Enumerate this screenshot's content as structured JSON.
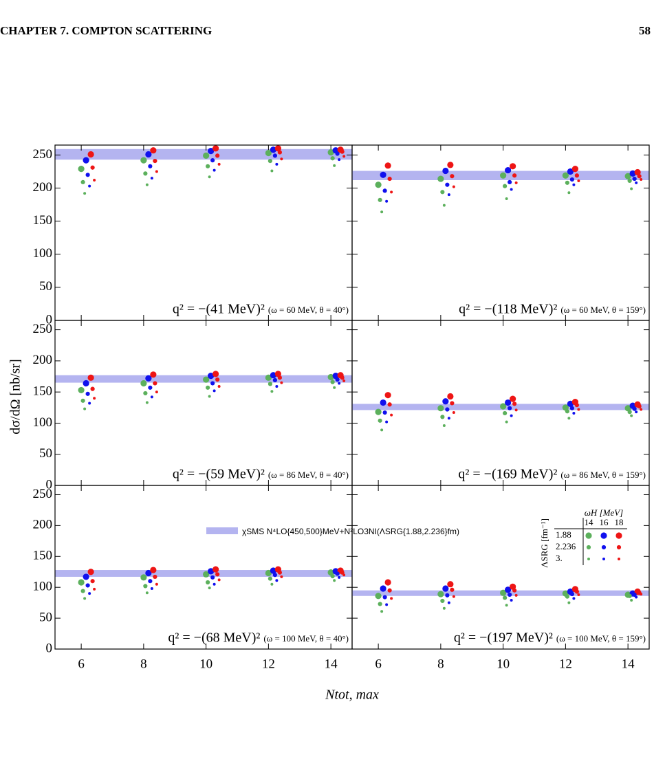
{
  "header": {
    "chapter": "CHAPTER 7.  COMPTON SCATTERING",
    "page": "58"
  },
  "figure": {
    "ylabel": "dσ/dΩ [nb/sr]",
    "xlabel": "Ntot, max",
    "band_label": "χSMS N⁴LO{450,500}MeV+N²LO3NI(ΛSRG{1.88,2.236}fm)",
    "band_color": "#b4b4f0",
    "legend": {
      "title": "ωH [MeV]",
      "row_title": "ΛSRG [fm⁻¹]",
      "omegas": [
        14,
        16,
        18
      ],
      "lambdas": [
        1.88,
        2.236,
        {
          "value": 3,
          "label": "3."
        }
      ],
      "colors": [
        "#5cb05c",
        "#1010ee",
        "#ee1515"
      ]
    }
  },
  "chart_data": [
    {
      "type": "scatter",
      "annotation": "q² = −(41 MeV)²",
      "detail": "(ω = 60 MeV, θ = 40°)",
      "band": [
        243,
        259
      ],
      "x": [
        6,
        8,
        10,
        12,
        14
      ],
      "xlim": [
        5.16,
        14.68
      ],
      "xticks": [
        6,
        8,
        10,
        12,
        14
      ],
      "ylim": [
        0,
        265
      ],
      "yticks": [
        0,
        50,
        100,
        150,
        200,
        250
      ],
      "series": [
        {
          "omega": 14,
          "lambda": 1.88,
          "values": [
            229,
            242,
            249,
            253,
            254
          ]
        },
        {
          "omega": 16,
          "lambda": 1.88,
          "values": [
            242,
            251,
            256,
            258,
            257
          ]
        },
        {
          "omega": 18,
          "lambda": 1.88,
          "values": [
            251,
            257,
            260,
            260,
            258
          ]
        },
        {
          "omega": 14,
          "lambda": 2.236,
          "values": [
            209,
            222,
            233,
            241,
            245
          ]
        },
        {
          "omega": 16,
          "lambda": 2.236,
          "values": [
            220,
            233,
            242,
            249,
            252
          ]
        },
        {
          "omega": 18,
          "lambda": 2.236,
          "values": [
            231,
            241,
            249,
            254,
            255
          ]
        },
        {
          "omega": 14,
          "lambda": 3,
          "values": [
            192,
            205,
            217,
            226,
            234
          ]
        },
        {
          "omega": 16,
          "lambda": 3,
          "values": [
            203,
            215,
            227,
            236,
            243
          ]
        },
        {
          "omega": 18,
          "lambda": 3,
          "values": [
            212,
            225,
            236,
            244,
            248
          ]
        }
      ]
    },
    {
      "type": "scatter",
      "annotation": "q² = −(118 MeV)²",
      "detail": "(ω = 60 MeV, θ = 159°)",
      "band": [
        212,
        226
      ],
      "x": [
        6,
        8,
        10,
        12,
        14
      ],
      "xlim": [
        5.16,
        14.68
      ],
      "xticks": [
        6,
        8,
        10,
        12,
        14
      ],
      "ylim": [
        0,
        265
      ],
      "yticks": [
        0,
        50,
        100,
        150,
        200,
        250
      ],
      "series": [
        {
          "omega": 14,
          "lambda": 1.88,
          "values": [
            205,
            214,
            219,
            219,
            218
          ]
        },
        {
          "omega": 16,
          "lambda": 1.88,
          "values": [
            220,
            226,
            227,
            225,
            222
          ]
        },
        {
          "omega": 18,
          "lambda": 1.88,
          "values": [
            234,
            235,
            233,
            229,
            224
          ]
        },
        {
          "omega": 14,
          "lambda": 2.236,
          "values": [
            182,
            194,
            203,
            208,
            211
          ]
        },
        {
          "omega": 16,
          "lambda": 2.236,
          "values": [
            196,
            205,
            209,
            213,
            214
          ]
        },
        {
          "omega": 18,
          "lambda": 2.236,
          "values": [
            214,
            218,
            219,
            219,
            218
          ]
        },
        {
          "omega": 14,
          "lambda": 3,
          "values": [
            164,
            174,
            184,
            193,
            199
          ]
        },
        {
          "omega": 16,
          "lambda": 3,
          "values": [
            180,
            190,
            198,
            205,
            208
          ]
        },
        {
          "omega": 18,
          "lambda": 3,
          "values": [
            194,
            202,
            208,
            211,
            213
          ]
        }
      ]
    },
    {
      "type": "scatter",
      "annotation": "q² = −(59 MeV)²",
      "detail": "(ω = 86 MeV, θ = 40°)",
      "band": [
        165,
        177
      ],
      "x": [
        6,
        8,
        10,
        12,
        14
      ],
      "xlim": [
        5.16,
        14.68
      ],
      "xticks": [
        6,
        8,
        10,
        12,
        14
      ],
      "ylim": [
        0,
        265
      ],
      "yticks": [
        0,
        50,
        100,
        150,
        200,
        250
      ],
      "series": [
        {
          "omega": 14,
          "lambda": 1.88,
          "values": [
            153,
            164,
            170,
            173,
            174
          ]
        },
        {
          "omega": 16,
          "lambda": 1.88,
          "values": [
            164,
            172,
            176,
            177,
            176
          ]
        },
        {
          "omega": 18,
          "lambda": 1.88,
          "values": [
            173,
            178,
            179,
            179,
            177
          ]
        },
        {
          "omega": 14,
          "lambda": 2.236,
          "values": [
            136,
            148,
            157,
            163,
            166
          ]
        },
        {
          "omega": 16,
          "lambda": 2.236,
          "values": [
            147,
            157,
            164,
            169,
            170
          ]
        },
        {
          "omega": 18,
          "lambda": 2.236,
          "values": [
            155,
            164,
            170,
            173,
            173
          ]
        },
        {
          "omega": 14,
          "lambda": 3,
          "values": [
            123,
            133,
            143,
            151,
            157
          ]
        },
        {
          "omega": 16,
          "lambda": 3,
          "values": [
            132,
            142,
            152,
            159,
            164
          ]
        },
        {
          "omega": 18,
          "lambda": 3,
          "values": [
            140,
            150,
            159,
            165,
            168
          ]
        }
      ]
    },
    {
      "type": "scatter",
      "annotation": "q² = −(169 MeV)²",
      "detail": "(ω = 86 MeV, θ = 159°)",
      "band": [
        121,
        131
      ],
      "x": [
        6,
        8,
        10,
        12,
        14
      ],
      "xlim": [
        5.16,
        14.68
      ],
      "xticks": [
        6,
        8,
        10,
        12,
        14
      ],
      "ylim": [
        0,
        265
      ],
      "yticks": [
        0,
        50,
        100,
        150,
        200,
        250
      ],
      "series": [
        {
          "omega": 14,
          "lambda": 1.88,
          "values": [
            118,
            124,
            127,
            125,
            124
          ]
        },
        {
          "omega": 16,
          "lambda": 1.88,
          "values": [
            133,
            135,
            133,
            131,
            128
          ]
        },
        {
          "omega": 18,
          "lambda": 1.88,
          "values": [
            145,
            143,
            139,
            134,
            130
          ]
        },
        {
          "omega": 14,
          "lambda": 2.236,
          "values": [
            104,
            110,
            116,
            119,
            118
          ]
        },
        {
          "omega": 16,
          "lambda": 2.236,
          "values": [
            117,
            122,
            124,
            124,
            123
          ]
        },
        {
          "omega": 18,
          "lambda": 2.236,
          "values": [
            130,
            132,
            131,
            129,
            127
          ]
        },
        {
          "omega": 14,
          "lambda": 3,
          "values": [
            89,
            96,
            102,
            108,
            112
          ]
        },
        {
          "omega": 16,
          "lambda": 3,
          "values": [
            102,
            108,
            112,
            116,
            118
          ]
        },
        {
          "omega": 18,
          "lambda": 3,
          "values": [
            113,
            117,
            121,
            122,
            122
          ]
        }
      ]
    },
    {
      "type": "scatter",
      "annotation": "q² = −(68 MeV)²",
      "detail": "(ω = 100 MeV, θ = 40°)",
      "band": [
        117,
        128
      ],
      "x": [
        6,
        8,
        10,
        12,
        14
      ],
      "xlim": [
        5.16,
        14.68
      ],
      "xticks": [
        6,
        8,
        10,
        12,
        14
      ],
      "ylim": [
        0,
        265
      ],
      "yticks": [
        0,
        50,
        100,
        150,
        200,
        250
      ],
      "series": [
        {
          "omega": 14,
          "lambda": 1.88,
          "values": [
            108,
            116,
            121,
            123,
            124
          ]
        },
        {
          "omega": 16,
          "lambda": 1.88,
          "values": [
            117,
            123,
            126,
            127,
            126
          ]
        },
        {
          "omega": 18,
          "lambda": 1.88,
          "values": [
            125,
            128,
            129,
            129,
            127
          ]
        },
        {
          "omega": 14,
          "lambda": 2.236,
          "values": [
            94,
            102,
            108,
            114,
            118
          ]
        },
        {
          "omega": 16,
          "lambda": 2.236,
          "values": [
            103,
            110,
            116,
            120,
            122
          ]
        },
        {
          "omega": 18,
          "lambda": 2.236,
          "values": [
            110,
            117,
            121,
            124,
            124
          ]
        },
        {
          "omega": 14,
          "lambda": 3,
          "values": [
            82,
            91,
            99,
            105,
            111
          ]
        },
        {
          "omega": 16,
          "lambda": 3,
          "values": [
            90,
            98,
            105,
            111,
            116
          ]
        },
        {
          "omega": 18,
          "lambda": 3,
          "values": [
            97,
            105,
            112,
            117,
            120
          ]
        }
      ]
    },
    {
      "type": "scatter",
      "annotation": "q² = −(197 MeV)²",
      "detail": "(ω = 100 MeV, θ = 159°)",
      "band": [
        86,
        95
      ],
      "x": [
        6,
        8,
        10,
        12,
        14
      ],
      "xlim": [
        5.16,
        14.68
      ],
      "xticks": [
        6,
        8,
        10,
        12,
        14
      ],
      "ylim": [
        0,
        265
      ],
      "yticks": [
        0,
        50,
        100,
        150,
        200,
        250
      ],
      "series": [
        {
          "omega": 14,
          "lambda": 1.88,
          "values": [
            86,
            89,
            91,
            90,
            88
          ]
        },
        {
          "omega": 16,
          "lambda": 1.88,
          "values": [
            98,
            98,
            96,
            93,
            90
          ]
        },
        {
          "omega": 18,
          "lambda": 1.88,
          "values": [
            108,
            105,
            101,
            97,
            93
          ]
        },
        {
          "omega": 14,
          "lambda": 2.236,
          "values": [
            73,
            78,
            83,
            85,
            86
          ]
        },
        {
          "omega": 16,
          "lambda": 2.236,
          "values": [
            84,
            87,
            88,
            89,
            88
          ]
        },
        {
          "omega": 18,
          "lambda": 2.236,
          "values": [
            95,
            96,
            95,
            93,
            91
          ]
        },
        {
          "omega": 14,
          "lambda": 3,
          "values": [
            61,
            66,
            71,
            75,
            79
          ]
        },
        {
          "omega": 16,
          "lambda": 3,
          "values": [
            72,
            75,
            79,
            82,
            84
          ]
        },
        {
          "omega": 18,
          "lambda": 3,
          "values": [
            82,
            85,
            87,
            88,
            89
          ]
        }
      ]
    }
  ]
}
